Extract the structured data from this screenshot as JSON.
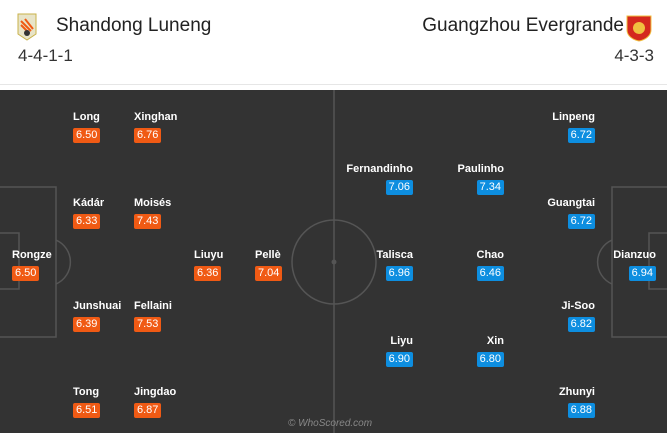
{
  "home": {
    "name": "Shandong Luneng",
    "formation": "4-4-1-1",
    "color": "#f05a14",
    "players": [
      {
        "name": "Long",
        "rating": "6.50"
      },
      {
        "name": "Xinghan",
        "rating": "6.76"
      },
      {
        "name": "Kádár",
        "rating": "6.33"
      },
      {
        "name": "Moisés",
        "rating": "7.43"
      },
      {
        "name": "Rongze",
        "rating": "6.50"
      },
      {
        "name": "Liuyu",
        "rating": "6.36"
      },
      {
        "name": "Pellè",
        "rating": "7.04"
      },
      {
        "name": "Junshuai",
        "rating": "6.39"
      },
      {
        "name": "Fellaini",
        "rating": "7.53"
      },
      {
        "name": "Tong",
        "rating": "6.51"
      },
      {
        "name": "Jingdao",
        "rating": "6.87"
      }
    ]
  },
  "away": {
    "name": "Guangzhou Evergrande",
    "formation": "4-3-3",
    "color": "#0d8ee0",
    "players": [
      {
        "name": "Linpeng",
        "rating": "6.72"
      },
      {
        "name": "Fernandinho",
        "rating": "7.06"
      },
      {
        "name": "Paulinho",
        "rating": "7.34"
      },
      {
        "name": "Guangtai",
        "rating": "6.72"
      },
      {
        "name": "Talisca",
        "rating": "6.96"
      },
      {
        "name": "Chao",
        "rating": "6.46"
      },
      {
        "name": "Dianzuo",
        "rating": "6.94"
      },
      {
        "name": "Ji-Soo",
        "rating": "6.82"
      },
      {
        "name": "Liyu",
        "rating": "6.90"
      },
      {
        "name": "Xin",
        "rating": "6.80"
      },
      {
        "name": "Zhunyi",
        "rating": "6.88"
      }
    ]
  },
  "watermark": "© WhoScored.com"
}
